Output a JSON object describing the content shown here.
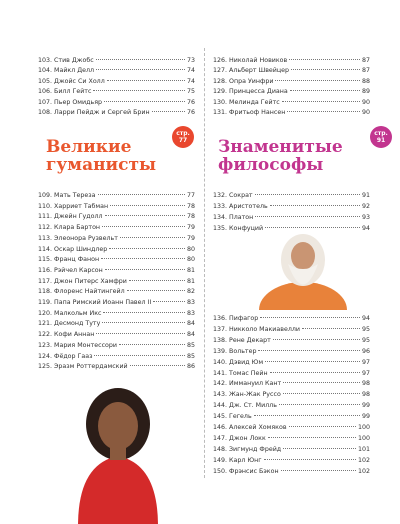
{
  "top_left": {
    "entries": [
      {
        "label": "103. Стив Джобс",
        "page": 73
      },
      {
        "label": "104. Майкл Делл",
        "page": 74
      },
      {
        "label": "105. Джойс Си Холл",
        "page": 74
      },
      {
        "label": "106. Билл Гейтс",
        "page": 75
      },
      {
        "label": "107. Пьер Омидьяр",
        "page": 76
      },
      {
        "label": "108. Ларри Пейдж и Сергей Брин",
        "page": 76
      }
    ]
  },
  "top_right": {
    "entries": [
      {
        "label": "126. Николай Новиков",
        "page": 87
      },
      {
        "label": "127. Альберт Швейцер",
        "page": 87
      },
      {
        "label": "128. Опра Уинфри",
        "page": 88
      },
      {
        "label": "129. Принцесса Диана",
        "page": 89
      },
      {
        "label": "130. Мелинда Гейтс",
        "page": 90
      },
      {
        "label": "131. Фритьоф Нансен",
        "page": 90
      }
    ]
  },
  "humanists": {
    "title": "Великие гуманисты",
    "badge": "стр. 77",
    "entries": [
      {
        "label": "109. Мать Тереза",
        "page": 77
      },
      {
        "label": "110. Харриет Табман",
        "page": 78
      },
      {
        "label": "111. Джейн Гудолл",
        "page": 78
      },
      {
        "label": "112. Клара Бартон",
        "page": 79
      },
      {
        "label": "113. Элеонора Рузвельт",
        "page": 79
      },
      {
        "label": "114. Оскар Шиндлер",
        "page": 80
      },
      {
        "label": "115. Франц Фанон",
        "page": 80
      },
      {
        "label": "116. Рэйчел Карсон",
        "page": 81
      },
      {
        "label": "117. Джон Питерс Хамфри",
        "page": 81
      },
      {
        "label": "118. Флоренс Найтингейл",
        "page": 82
      },
      {
        "label": "119. Папа Римский Иоанн Павел II",
        "page": 83
      },
      {
        "label": "120. Малкольм Икс",
        "page": 83
      },
      {
        "label": "121. Десмонд Туту",
        "page": 84
      },
      {
        "label": "122. Кофи Аннан",
        "page": 84
      },
      {
        "label": "123. Мария Монтессори",
        "page": 85
      },
      {
        "label": "124. Фёдор Гааз",
        "page": 85
      },
      {
        "label": "125. Эразм Роттердамский",
        "page": 86
      }
    ]
  },
  "philosophers": {
    "title": "Знаменитые философы",
    "badge": "стр. 91",
    "entries_a": [
      {
        "label": "132. Сократ",
        "page": 91
      },
      {
        "label": "133. Аристотель",
        "page": 92
      },
      {
        "label": "134. Платон",
        "page": 93
      },
      {
        "label": "135. Конфуций",
        "page": 94
      }
    ],
    "entries_b": [
      {
        "label": "136. Пифагор",
        "page": 94
      },
      {
        "label": "137. Никколо Макиавелли",
        "page": 95
      },
      {
        "label": "138. Рене Декарт",
        "page": 95
      },
      {
        "label": "139. Вольтер",
        "page": 96
      },
      {
        "label": "140. Дэвид Юм",
        "page": 97
      },
      {
        "label": "141. Томас Пейн",
        "page": 97
      },
      {
        "label": "142. Иммануил Кант",
        "page": 98
      },
      {
        "label": "143. Жан-Жак Руссо",
        "page": 98
      },
      {
        "label": "144. Дж. Ст. Милль",
        "page": 99
      },
      {
        "label": "145. Гегель",
        "page": 99
      },
      {
        "label": "146. Алексей Хомяков",
        "page": 100
      },
      {
        "label": "147. Джон Локк",
        "page": 100
      },
      {
        "label": "148. Зигмунд Фрейд",
        "page": 101
      },
      {
        "label": "149. Карл Юнг",
        "page": 102
      },
      {
        "label": "150. Фрэнсис Бэкон",
        "page": 102
      }
    ]
  }
}
